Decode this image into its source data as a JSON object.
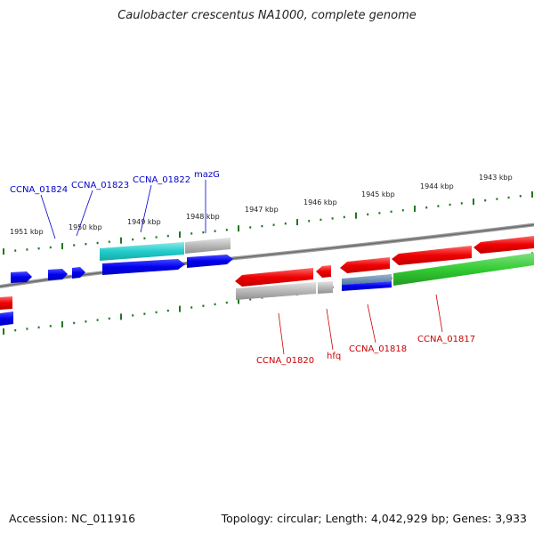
{
  "title": "Caulobacter crescentus NA1000, complete genome",
  "footer": {
    "accession": "Accession: NC_011916",
    "summary": "Topology: circular; Length: 4,042,929 bp; Genes: 3,933"
  },
  "kbp_labels": [
    "1943 kbp",
    "1944 kbp",
    "1945 kbp",
    "1946 kbp",
    "1947 kbp",
    "1948 kbp",
    "1949 kbp",
    "1950 kbp",
    "1951 kbp"
  ],
  "gene_labels": {
    "top": [
      "CCNA_01824",
      "CCNA_01823",
      "CCNA_01822",
      "mazG"
    ],
    "bottom": [
      "CCNA_01820",
      "hfq",
      "CCNA_01818",
      "CCNA_01817"
    ]
  },
  "colors": {
    "forward_gene": "#0000ee",
    "reverse_gene": "#ee0000",
    "cyan_gene": "#22cccc",
    "green_gene": "#33cc33",
    "grey_gene": "#b0b0b0",
    "backbone": "#808080",
    "tick": "#227722"
  }
}
